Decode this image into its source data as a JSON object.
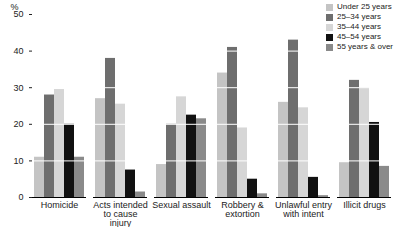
{
  "chart_data": {
    "type": "bar",
    "categories": [
      "Homicide",
      "Acts intended to cause injury",
      "Sexual assault",
      "Robbery & extortion",
      "Unlawful entry with intent",
      "Illicit drugs"
    ],
    "series": [
      {
        "name": "Under 25 years",
        "color": "#c4c4c4",
        "values": [
          11,
          27,
          9,
          34,
          26,
          9.5
        ]
      },
      {
        "name": "25–34 years",
        "color": "#6e6e6e",
        "values": [
          28,
          38,
          20,
          41,
          43,
          32
        ]
      },
      {
        "name": "35–44 years",
        "color": "#d6d6d6",
        "values": [
          29.5,
          25.5,
          27.5,
          19,
          24.5,
          30
        ]
      },
      {
        "name": "45–54 years",
        "color": "#111111",
        "values": [
          20,
          7.5,
          22.5,
          5,
          5.5,
          20.5
        ]
      },
      {
        "name": "55 years & over",
        "color": "#8a8a8a",
        "values": [
          11,
          1.5,
          21.5,
          1,
          0.5,
          8.5
        ]
      }
    ],
    "y_label": "%",
    "ylim": [
      0,
      50
    ],
    "yticks": [
      0,
      10,
      20,
      30,
      40,
      50
    ],
    "grid": true,
    "legend": "upper right"
  }
}
